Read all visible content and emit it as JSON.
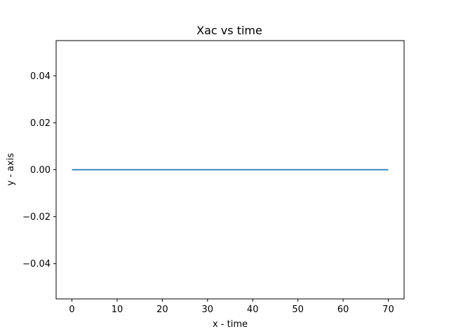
{
  "chart_data": {
    "type": "line",
    "title": "Xac vs time",
    "xlabel": "x - time",
    "ylabel": "y - axis",
    "xlim": [
      -3.5,
      73.5
    ],
    "ylim": [
      -0.055,
      0.055
    ],
    "xticks": [
      0,
      10,
      20,
      30,
      40,
      50,
      60,
      70
    ],
    "yticks": [
      0.04,
      0.02,
      0.0,
      -0.02,
      -0.04
    ],
    "yticklabels": [
      "0.04",
      "0.02",
      "0.00",
      "−0.02",
      "−0.04"
    ],
    "grid": false,
    "series": [
      {
        "color": "#1f77b4",
        "x": [
          0,
          70
        ],
        "y": [
          0,
          0
        ]
      }
    ]
  }
}
